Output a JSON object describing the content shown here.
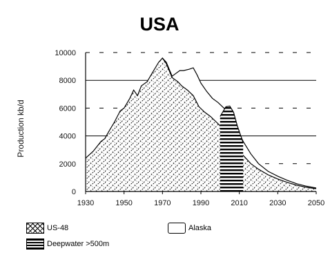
{
  "chart_data": {
    "type": "area",
    "title": "USA",
    "xlabel": "",
    "ylabel": "Production kb/d",
    "x_ticks": [
      "1930",
      "1950",
      "1970",
      "1990",
      "2010",
      "2030",
      "2050"
    ],
    "y_ticks": [
      "0",
      "2000",
      "4000",
      "6000",
      "8000",
      "10000"
    ],
    "xlim": [
      1930,
      2050
    ],
    "ylim": [
      0,
      10000
    ],
    "stacked": true,
    "legend_position": "bottom",
    "grid": "horizontal",
    "series": [
      {
        "name": "US-48",
        "fill": "crosshatch",
        "points": [
          [
            1930,
            2400
          ],
          [
            1934,
            2900
          ],
          [
            1938,
            3600
          ],
          [
            1940,
            3800
          ],
          [
            1942,
            4300
          ],
          [
            1945,
            5000
          ],
          [
            1948,
            5800
          ],
          [
            1950,
            6000
          ],
          [
            1953,
            6700
          ],
          [
            1955,
            7300
          ],
          [
            1957,
            6900
          ],
          [
            1959,
            7600
          ],
          [
            1962,
            7900
          ],
          [
            1965,
            8600
          ],
          [
            1968,
            9300
          ],
          [
            1970,
            9600
          ],
          [
            1972,
            9200
          ],
          [
            1975,
            8200
          ],
          [
            1978,
            7900
          ],
          [
            1980,
            7600
          ],
          [
            1983,
            7300
          ],
          [
            1986,
            6900
          ],
          [
            1989,
            6100
          ],
          [
            1992,
            5700
          ],
          [
            1995,
            5400
          ],
          [
            1998,
            5000
          ],
          [
            2001,
            4600
          ],
          [
            2004,
            4000
          ],
          [
            2008,
            3300
          ],
          [
            2012,
            2600
          ],
          [
            2016,
            2000
          ],
          [
            2020,
            1600
          ],
          [
            2025,
            1200
          ],
          [
            2030,
            900
          ],
          [
            2035,
            650
          ],
          [
            2040,
            450
          ],
          [
            2045,
            300
          ],
          [
            2050,
            200
          ]
        ]
      },
      {
        "name": "Alaska",
        "fill": "white",
        "points": [
          [
            1970,
            9600
          ],
          [
            1972,
            9300
          ],
          [
            1975,
            8300
          ],
          [
            1977,
            8500
          ],
          [
            1979,
            8700
          ],
          [
            1981,
            8700
          ],
          [
            1984,
            8800
          ],
          [
            1986,
            8900
          ],
          [
            1988,
            8400
          ],
          [
            1990,
            7800
          ],
          [
            1993,
            7200
          ],
          [
            1996,
            6700
          ],
          [
            1999,
            6400
          ],
          [
            2002,
            6000
          ],
          [
            2005,
            5500
          ],
          [
            2008,
            4800
          ],
          [
            2012,
            3600
          ],
          [
            2016,
            2700
          ],
          [
            2020,
            2000
          ],
          [
            2025,
            1450
          ],
          [
            2030,
            1100
          ],
          [
            2035,
            800
          ],
          [
            2040,
            550
          ],
          [
            2045,
            380
          ],
          [
            2050,
            250
          ]
        ]
      },
      {
        "name": "Deepwater >500m",
        "fill": "horizontal-stripes",
        "points": [
          [
            2000,
            5400
          ],
          [
            2003,
            6100
          ],
          [
            2005,
            6150
          ],
          [
            2007,
            5700
          ],
          [
            2009,
            4700
          ],
          [
            2011,
            3900
          ],
          [
            2012,
            3500
          ]
        ]
      }
    ]
  }
}
